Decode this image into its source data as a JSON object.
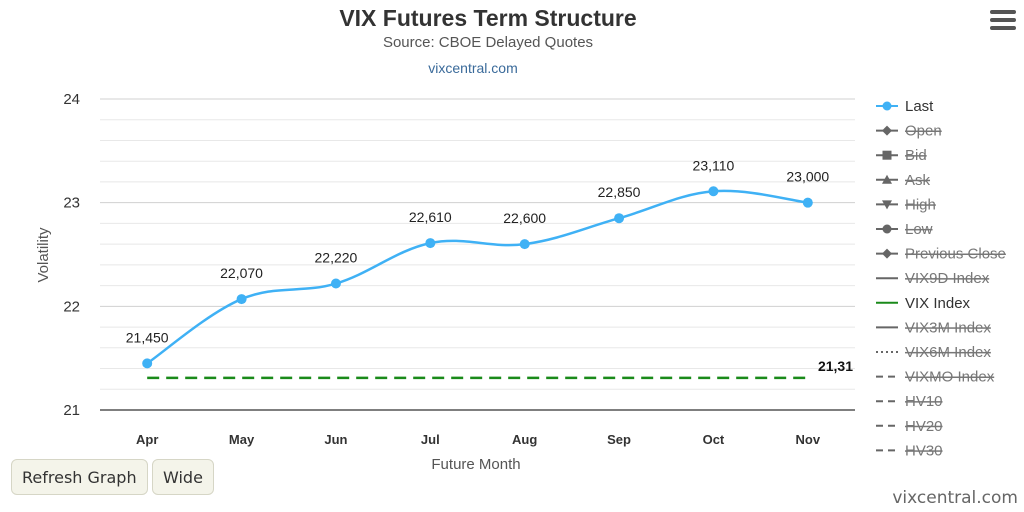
{
  "chart_data": {
    "type": "line",
    "title": "VIX Futures Term Structure",
    "subtitle": "Source: CBOE Delayed Quotes",
    "credit": "vixcentral.com",
    "xlabel": "Future Month",
    "ylabel": "Volatility",
    "categories": [
      "Apr",
      "May",
      "Jun",
      "Jul",
      "Aug",
      "Sep",
      "Oct",
      "Nov"
    ],
    "ylim": [
      21,
      24
    ],
    "yticks": [
      "21",
      "22",
      "23",
      "24"
    ],
    "grid": true,
    "legend_position": "right",
    "series": [
      {
        "name": "Last",
        "color": "#3fb1f5",
        "values": [
          21.45,
          22.07,
          22.22,
          22.61,
          22.6,
          22.85,
          23.11,
          23.0
        ],
        "labels": [
          "21,450",
          "22,070",
          "22,220",
          "22,610",
          "22,600",
          "22,850",
          "23,110",
          "23,000"
        ]
      },
      {
        "name": "VIX Index",
        "color": "#1a8a1a",
        "style": "dashed",
        "value": 21.31,
        "label": "21,31"
      }
    ],
    "legend": [
      {
        "name": "Last",
        "enabled": true,
        "symbol": "circle",
        "color": "#3fb1f5"
      },
      {
        "name": "Open",
        "enabled": false,
        "symbol": "diamond",
        "color": "#666666"
      },
      {
        "name": "Bid",
        "enabled": false,
        "symbol": "square",
        "color": "#666666"
      },
      {
        "name": "Ask",
        "enabled": false,
        "symbol": "triangle",
        "color": "#666666"
      },
      {
        "name": "High",
        "enabled": false,
        "symbol": "triangle-down",
        "color": "#666666"
      },
      {
        "name": "Low",
        "enabled": false,
        "symbol": "circle",
        "color": "#666666"
      },
      {
        "name": "Previous Close",
        "enabled": false,
        "symbol": "diamond",
        "color": "#666666"
      },
      {
        "name": "VIX9D Index",
        "enabled": false,
        "symbol": "line",
        "color": "#666666"
      },
      {
        "name": "VIX Index",
        "enabled": true,
        "symbol": "line",
        "color": "#1a8a1a"
      },
      {
        "name": "VIX3M Index",
        "enabled": false,
        "symbol": "line",
        "color": "#666666"
      },
      {
        "name": "VIX6M Index",
        "enabled": false,
        "symbol": "dotted",
        "color": "#666666"
      },
      {
        "name": "VIXMO Index",
        "enabled": false,
        "symbol": "dashed",
        "color": "#666666"
      },
      {
        "name": "HV10",
        "enabled": false,
        "symbol": "dashed",
        "color": "#666666"
      },
      {
        "name": "HV20",
        "enabled": false,
        "symbol": "dashed",
        "color": "#666666"
      },
      {
        "name": "HV30",
        "enabled": false,
        "symbol": "dashed",
        "color": "#666666"
      }
    ]
  },
  "menu": {
    "icon": "hamburger-menu-icon"
  },
  "buttons": {
    "refresh": "Refresh Graph",
    "wide": "Wide"
  },
  "footer": {
    "credit": "vixcentral.com"
  }
}
